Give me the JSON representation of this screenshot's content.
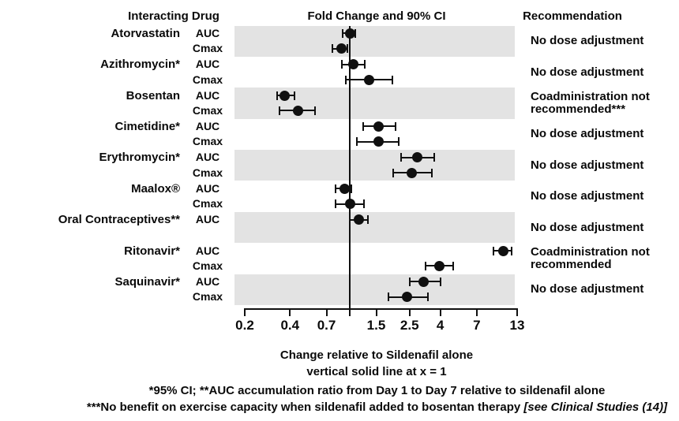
{
  "headers": {
    "interacting_drug": "Interacting Drug",
    "fold_change": "Fold Change and 90% CI",
    "recommendation": "Recommendation"
  },
  "captions": {
    "xlabel": "Change relative to Sildenafil alone",
    "refline_note": "vertical solid line at x = 1"
  },
  "footnotes": {
    "line1": "*95% CI; **AUC accumulation ratio from Day 1 to Day 7 relative to sildenafil alone",
    "line2_text": "***No benefit on exercise capacity when sildenafil added to bosentan therapy ",
    "line2_italic": "[see Clinical Studies (14)]"
  },
  "colors": {
    "band": "#e3e3e3",
    "marker": "#101010",
    "text": "#0a0a0a"
  },
  "chart_data": {
    "type": "forest",
    "title": "Fold Change and 90% CI",
    "xlabel": "Change relative to Sildenafil alone",
    "x_scale": "log",
    "x_range": [
      0.2,
      13
    ],
    "x_ticks": [
      0.2,
      0.4,
      0.7,
      1,
      1.5,
      2.5,
      4,
      7,
      13
    ],
    "x_tick_labels": [
      "0.2",
      "0.4",
      "0.7",
      "",
      "1.5",
      "2.5",
      "4",
      "7",
      "13"
    ],
    "reference_line_x": 1,
    "groups": [
      {
        "drug": "Atorvastatin",
        "shaded": true,
        "recommendation": [
          "No dose adjustment"
        ],
        "rows": [
          {
            "metric": "AUC",
            "value": 1.0,
            "ci": [
              0.9,
              1.09
            ]
          },
          {
            "metric": "Cmax",
            "value": 0.88,
            "ci": [
              0.77,
              0.97
            ]
          }
        ]
      },
      {
        "drug": "Azithromycin*",
        "shaded": false,
        "recommendation": [
          "No dose adjustment"
        ],
        "rows": [
          {
            "metric": "AUC",
            "value": 1.05,
            "ci": [
              0.89,
              1.26
            ]
          },
          {
            "metric": "Cmax",
            "value": 1.34,
            "ci": [
              0.94,
              1.92
            ]
          }
        ]
      },
      {
        "drug": "Bosentan",
        "shaded": true,
        "recommendation": [
          "Coadministration not",
          "recommended***"
        ],
        "rows": [
          {
            "metric": "AUC",
            "value": 0.37,
            "ci": [
              0.33,
              0.43
            ]
          },
          {
            "metric": "Cmax",
            "value": 0.45,
            "ci": [
              0.34,
              0.59
            ]
          }
        ]
      },
      {
        "drug": "Cimetidine*",
        "shaded": false,
        "recommendation": [
          "No dose adjustment"
        ],
        "rows": [
          {
            "metric": "AUC",
            "value": 1.56,
            "ci": [
              1.23,
              2.02
            ]
          },
          {
            "metric": "Cmax",
            "value": 1.56,
            "ci": [
              1.12,
              2.13
            ]
          }
        ]
      },
      {
        "drug": "Erythromycin*",
        "shaded": true,
        "recommendation": [
          "No dose adjustment"
        ],
        "rows": [
          {
            "metric": "AUC",
            "value": 2.8,
            "ci": [
              2.2,
              3.65
            ]
          },
          {
            "metric": "Cmax",
            "value": 2.6,
            "ci": [
              1.95,
              3.5
            ]
          }
        ]
      },
      {
        "drug": "Maalox®",
        "shaded": false,
        "recommendation": [
          "No dose adjustment"
        ],
        "rows": [
          {
            "metric": "AUC",
            "value": 0.92,
            "ci": [
              0.8,
              1.02
            ]
          },
          {
            "metric": "Cmax",
            "value": 1.0,
            "ci": [
              0.8,
              1.25
            ]
          }
        ]
      },
      {
        "drug": "Oral Contraceptives**",
        "shaded": true,
        "recommendation": [
          "No dose adjustment"
        ],
        "rows": [
          {
            "metric": "AUC",
            "value": 1.15,
            "ci": [
              1.0,
              1.32
            ]
          }
        ]
      },
      {
        "drug": "Ritonavir*",
        "shaded": false,
        "recommendation": [
          "Coadministration not",
          "recommended"
        ],
        "rows": [
          {
            "metric": "AUC",
            "value": 10.5,
            "ci": [
              9.0,
              12.0
            ]
          },
          {
            "metric": "Cmax",
            "value": 3.95,
            "ci": [
              3.2,
              4.9
            ]
          }
        ]
      },
      {
        "drug": "Saquinavir*",
        "shaded": true,
        "recommendation": [
          "No dose adjustment"
        ],
        "rows": [
          {
            "metric": "AUC",
            "value": 3.1,
            "ci": [
              2.5,
              4.0
            ]
          },
          {
            "metric": "Cmax",
            "value": 2.4,
            "ci": [
              1.8,
              3.3
            ]
          }
        ]
      }
    ]
  }
}
